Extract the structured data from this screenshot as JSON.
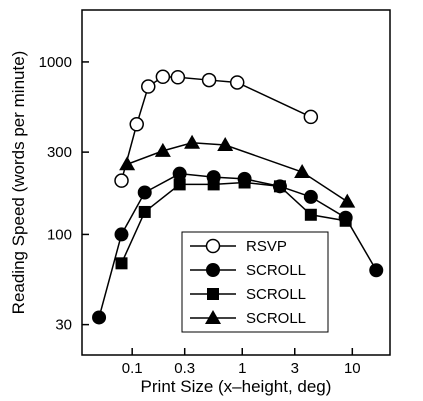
{
  "chart_data": {
    "type": "line",
    "title": "",
    "xlabel": "Print Size (x–height, deg)",
    "ylabel": "Reading Speed (words per minute)",
    "x_scale": "log",
    "y_scale": "log",
    "xlim": [
      0.035,
      22
    ],
    "ylim": [
      20,
      2000
    ],
    "x_ticks": [
      0.1,
      0.3,
      1,
      3,
      10
    ],
    "x_tick_labels": [
      "0.1",
      "0.3",
      "1",
      "3",
      "10"
    ],
    "y_ticks": [
      30,
      100,
      300,
      1000
    ],
    "y_tick_labels": [
      "30",
      "100",
      "300",
      "1000"
    ],
    "grid": false,
    "legend_position": "bottom-center",
    "series": [
      {
        "name": "RSVP",
        "marker": "open-circle",
        "x": [
          0.08,
          0.11,
          0.14,
          0.19,
          0.26,
          0.5,
          0.9,
          4.2
        ],
        "y": [
          205,
          435,
          720,
          820,
          815,
          785,
          760,
          480
        ]
      },
      {
        "name": "SCROLL",
        "marker": "filled-circle",
        "x": [
          0.05,
          0.08,
          0.13,
          0.27,
          0.55,
          1.05,
          2.2,
          4.2,
          8.7,
          16.5
        ],
        "y": [
          33,
          100,
          175,
          225,
          215,
          210,
          190,
          165,
          125,
          62
        ]
      },
      {
        "name": "SCROLL",
        "marker": "filled-square",
        "x": [
          0.08,
          0.13,
          0.27,
          0.55,
          1.05,
          2.2,
          4.2,
          8.7
        ],
        "y": [
          68,
          135,
          195,
          195,
          200,
          190,
          130,
          120
        ]
      },
      {
        "name": "SCROLL",
        "marker": "filled-triangle",
        "x": [
          0.09,
          0.19,
          0.35,
          0.7,
          3.5,
          9.0
        ],
        "y": [
          255,
          305,
          340,
          330,
          230,
          155
        ]
      }
    ]
  }
}
